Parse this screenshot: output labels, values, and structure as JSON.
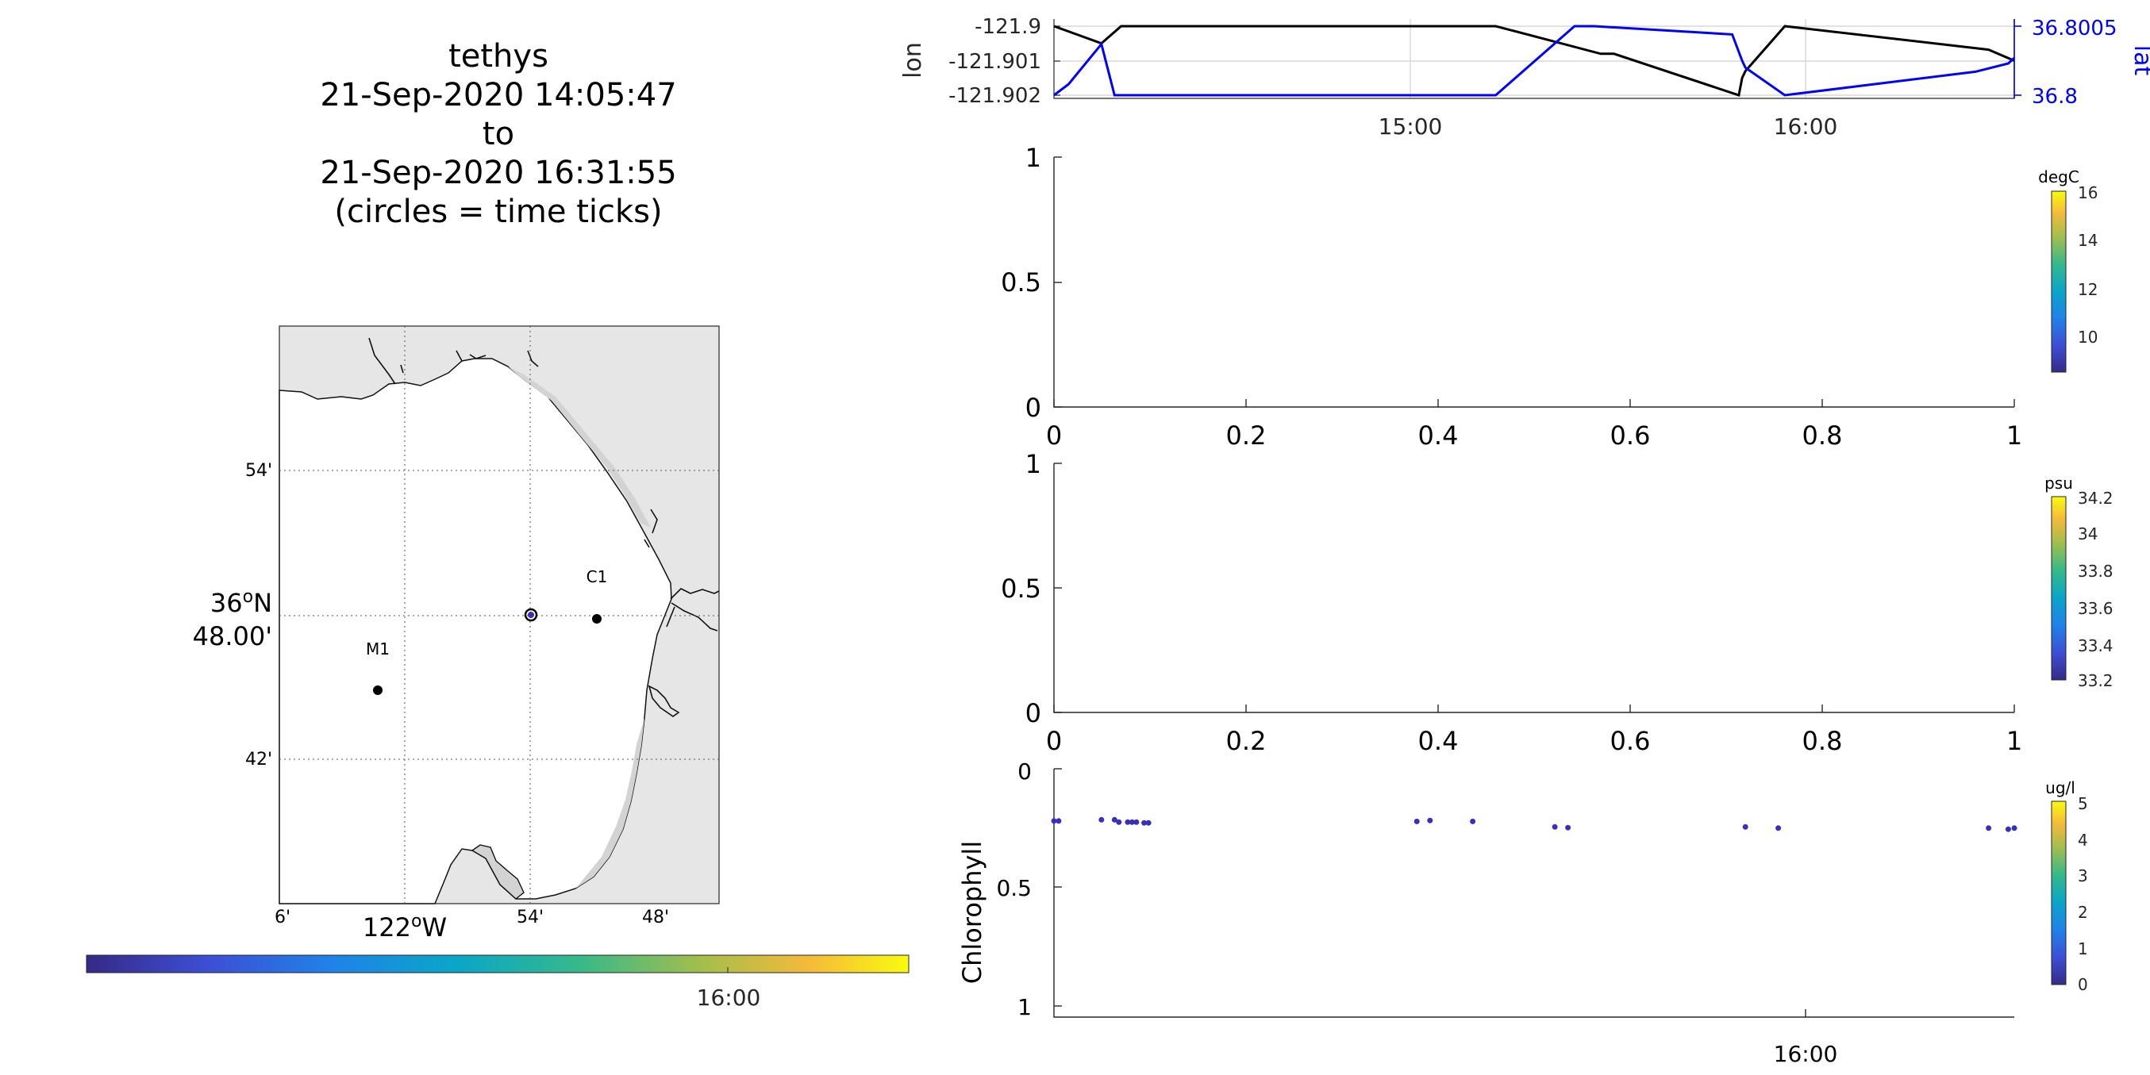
{
  "title_lines": [
    "tethys",
    "21-Sep-2020 14:05:47",
    "to",
    "21-Sep-2020 16:31:55",
    "(circles = time ticks)"
  ],
  "map": {
    "lat_ticks": [
      "54'",
      "48.00'",
      "42'"
    ],
    "lat_deg_label": "36",
    "lat_deg_suffix": "N",
    "lon_ticks": [
      "6'",
      "54'",
      "48'"
    ],
    "lon_deg_label": "122",
    "lon_deg_suffix": "W",
    "stations": [
      {
        "name": "C1",
        "lon": -121.847,
        "lat": 36.797
      },
      {
        "name": "M1",
        "lon": -122.022,
        "lat": 36.748
      }
    ],
    "vehicle": {
      "lon": -121.9,
      "lat": 36.8
    },
    "colorbar": {
      "tick_label": "16:00",
      "tick_frac": 0.78
    }
  },
  "chart_data": [
    {
      "type": "line",
      "title": "",
      "x_ticks": [
        "15:00",
        "16:00"
      ],
      "xlim": [
        "14:05:47",
        "16:31:55"
      ],
      "ylabel_left": "lon",
      "ylabel_right": "lat",
      "yticks_left": [
        "-121.9",
        "-121.901",
        "-121.902"
      ],
      "yticks_right": [
        "36.8005",
        "36.8"
      ],
      "ylim_left": [
        -121.902,
        -121.9
      ],
      "ylim_right": [
        36.8,
        36.8005
      ],
      "grid": true,
      "series": [
        {
          "name": "lon",
          "color": "#000000",
          "axis": "left",
          "x": [
            "14:05:47",
            "14:13:00",
            "14:16:00",
            "15:13:00",
            "15:29:00",
            "15:31:00",
            "15:50:00",
            "15:50:30",
            "15:51:00",
            "15:57:00",
            "16:28:00",
            "16:31:55"
          ],
          "y": [
            -121.9,
            -121.9005,
            -121.9,
            -121.9,
            -121.9008,
            -121.9008,
            -121.902,
            -121.9015,
            -121.9013,
            -121.9,
            -121.90068,
            -121.901
          ]
        },
        {
          "name": "lat",
          "color": "#0000ff",
          "axis": "right",
          "x": [
            "14:05:47",
            "14:08:00",
            "14:13:00",
            "14:15:00",
            "15:13:00",
            "15:25:00",
            "15:28:00",
            "15:49:00",
            "15:50:30",
            "15:51:00",
            "15:57:00",
            "16:26:00",
            "16:31:00",
            "16:31:55"
          ],
          "y": [
            36.8,
            36.80008,
            36.80037,
            36.8,
            36.8,
            36.8005,
            36.8005,
            36.80044,
            36.80025,
            36.8002,
            36.8,
            36.80017,
            36.80023,
            36.80027
          ]
        }
      ]
    },
    {
      "type": "scatter",
      "title": "",
      "xlim": [
        0,
        1
      ],
      "ylim": [
        0,
        1
      ],
      "x_ticks": [
        "0",
        "0.2",
        "0.4",
        "0.6",
        "0.8",
        "1"
      ],
      "y_ticks": [
        "0",
        "0.5",
        "1"
      ],
      "colorbar": {
        "unit": "degC",
        "ticks": [
          "16",
          "14",
          "12",
          "10"
        ],
        "range": [
          8.5,
          16.2
        ]
      },
      "series": []
    },
    {
      "type": "scatter",
      "title": "",
      "xlim": [
        0,
        1
      ],
      "ylim": [
        0,
        1
      ],
      "x_ticks": [
        "0",
        "0.2",
        "0.4",
        "0.6",
        "0.8",
        "1"
      ],
      "y_ticks": [
        "0",
        "0.5",
        "1"
      ],
      "colorbar": {
        "unit": "psu",
        "ticks": [
          "34.2",
          "34",
          "33.8",
          "33.6",
          "33.4",
          "33.2"
        ],
        "range": [
          33.15,
          34.25
        ]
      },
      "series": []
    },
    {
      "type": "scatter",
      "title": "",
      "ylabel": "Chlorophyll",
      "y_ticks": [
        "0",
        "0.5",
        "1"
      ],
      "ylim": [
        0,
        1
      ],
      "y_reversed": true,
      "x_ticks": [
        "16:00"
      ],
      "xlim": [
        "14:05:47",
        "16:31:55"
      ],
      "colorbar": {
        "unit": "ug/l",
        "ticks": [
          "5",
          "4",
          "3",
          "2",
          "1",
          "0"
        ],
        "range": [
          0,
          5.1
        ]
      },
      "point_color": "#3a2fb8",
      "points": [
        {
          "x": "14:05:47",
          "y": 0.22
        },
        {
          "x": "14:06:30",
          "y": 0.22
        },
        {
          "x": "14:13:00",
          "y": 0.215
        },
        {
          "x": "14:15:00",
          "y": 0.215
        },
        {
          "x": "14:15:40",
          "y": 0.225
        },
        {
          "x": "14:17:00",
          "y": 0.225
        },
        {
          "x": "14:17:40",
          "y": 0.225
        },
        {
          "x": "14:18:20",
          "y": 0.225
        },
        {
          "x": "14:19:30",
          "y": 0.228
        },
        {
          "x": "14:20:10",
          "y": 0.228
        },
        {
          "x": "15:01:00",
          "y": 0.222
        },
        {
          "x": "15:03:00",
          "y": 0.218
        },
        {
          "x": "15:09:30",
          "y": 0.222
        },
        {
          "x": "15:22:00",
          "y": 0.245
        },
        {
          "x": "15:24:00",
          "y": 0.248
        },
        {
          "x": "15:51:00",
          "y": 0.245
        },
        {
          "x": "15:56:00",
          "y": 0.25
        },
        {
          "x": "16:28:00",
          "y": 0.25
        },
        {
          "x": "16:31:00",
          "y": 0.255
        },
        {
          "x": "16:31:55",
          "y": 0.25
        }
      ]
    }
  ]
}
